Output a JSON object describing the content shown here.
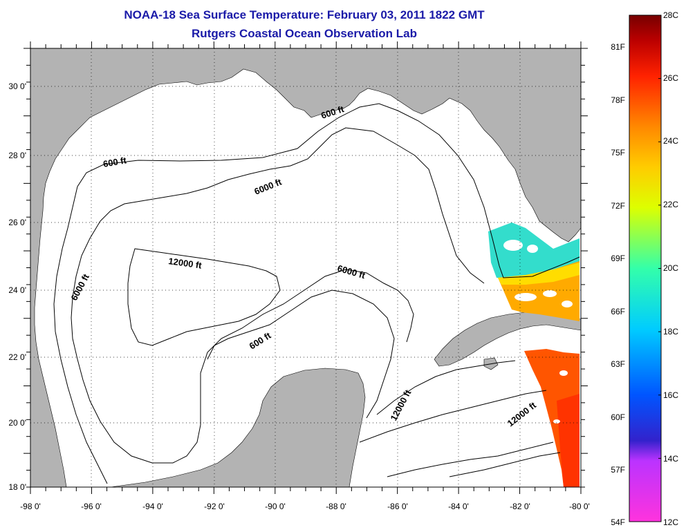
{
  "header": {
    "title": "NOAA-18 Sea Surface Temperature:  February 03, 2011 1822 GMT",
    "subtitle": "Rutgers Coastal Ocean Observation Lab"
  },
  "axes": {
    "lon_labels": [
      "-98 0'",
      "-96 0'",
      "-94 0'",
      "-92 0'",
      "-90 0'",
      "-88 0'",
      "-86 0'",
      "-84 0'",
      "-82 0'",
      "-80 0'"
    ],
    "lat_labels": [
      "30 0'",
      "28 0'",
      "26 0'",
      "24 0'",
      "22 0'",
      "20 0'",
      "18 0'"
    ],
    "lon_range": [
      -98,
      -80
    ],
    "lat_range": [
      18,
      31
    ]
  },
  "contours": {
    "labels": [
      {
        "text": "600 ft",
        "id": "contour-600-north"
      },
      {
        "text": "600 ft",
        "id": "contour-600-west"
      },
      {
        "text": "6000 ft",
        "id": "contour-6000-north"
      },
      {
        "text": "12000 ft",
        "id": "contour-12000-center"
      },
      {
        "text": "6000 ft",
        "id": "contour-6000-east"
      },
      {
        "text": "6000 ft",
        "id": "contour-6000-west"
      },
      {
        "text": "600 ft",
        "id": "contour-600-south"
      },
      {
        "text": "12000 ft",
        "id": "contour-12000-caribbean"
      },
      {
        "text": "12000 ft",
        "id": "contour-12000-far"
      }
    ]
  },
  "colorbar": {
    "celsius": [
      "28C",
      "26C",
      "24C",
      "22C",
      "20C",
      "18C",
      "16C",
      "14C",
      "12C"
    ],
    "fahrenheit": [
      "81F",
      "78F",
      "75F",
      "72F",
      "69F",
      "66F",
      "63F",
      "60F",
      "57F",
      "54F"
    ],
    "colors": [
      "#ff33cc",
      "#cc33ff",
      "#3333cc",
      "#0066ff",
      "#00ccff",
      "#00ffcc",
      "#66ff33",
      "#ffff00",
      "#ffaa00",
      "#ff6600",
      "#ff0000",
      "#cc0000",
      "#800000"
    ]
  },
  "colors": {
    "land": "#b3b3b3",
    "ocean": "#ffffff",
    "title": "#1a1aa8"
  }
}
